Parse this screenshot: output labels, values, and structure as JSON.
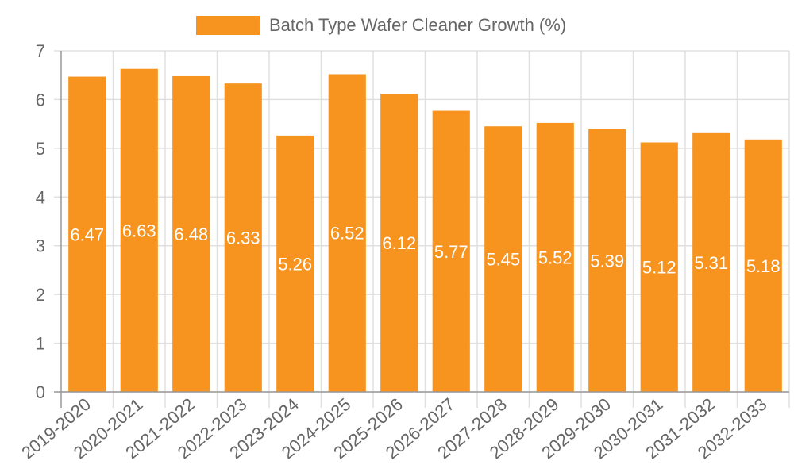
{
  "legend": {
    "label": "Batch Type Wafer Cleaner Growth (%)",
    "color": "#f7941f"
  },
  "chart_data": {
    "type": "bar",
    "title": "",
    "legend": [
      "Batch Type Wafer Cleaner Growth (%)"
    ],
    "legend_position": "top",
    "xlabel": "",
    "ylabel": "",
    "ylim": [
      0,
      7
    ],
    "yticks": [
      0,
      1,
      2,
      3,
      4,
      5,
      6,
      7
    ],
    "grid": true,
    "categories": [
      "2019-2020",
      "2020-2021",
      "2021-2022",
      "2022-2023",
      "2023-2024",
      "2024-2025",
      "2025-2026",
      "2026-2027",
      "2027-2028",
      "2028-2029",
      "2029-2030",
      "2030-2031",
      "2031-2032",
      "2032-2033"
    ],
    "series": [
      {
        "name": "Batch Type Wafer Cleaner Growth (%)",
        "color": "#f7941f",
        "values": [
          6.47,
          6.63,
          6.48,
          6.33,
          5.26,
          6.52,
          6.12,
          5.77,
          5.45,
          5.52,
          5.39,
          5.12,
          5.31,
          5.18
        ]
      }
    ]
  }
}
